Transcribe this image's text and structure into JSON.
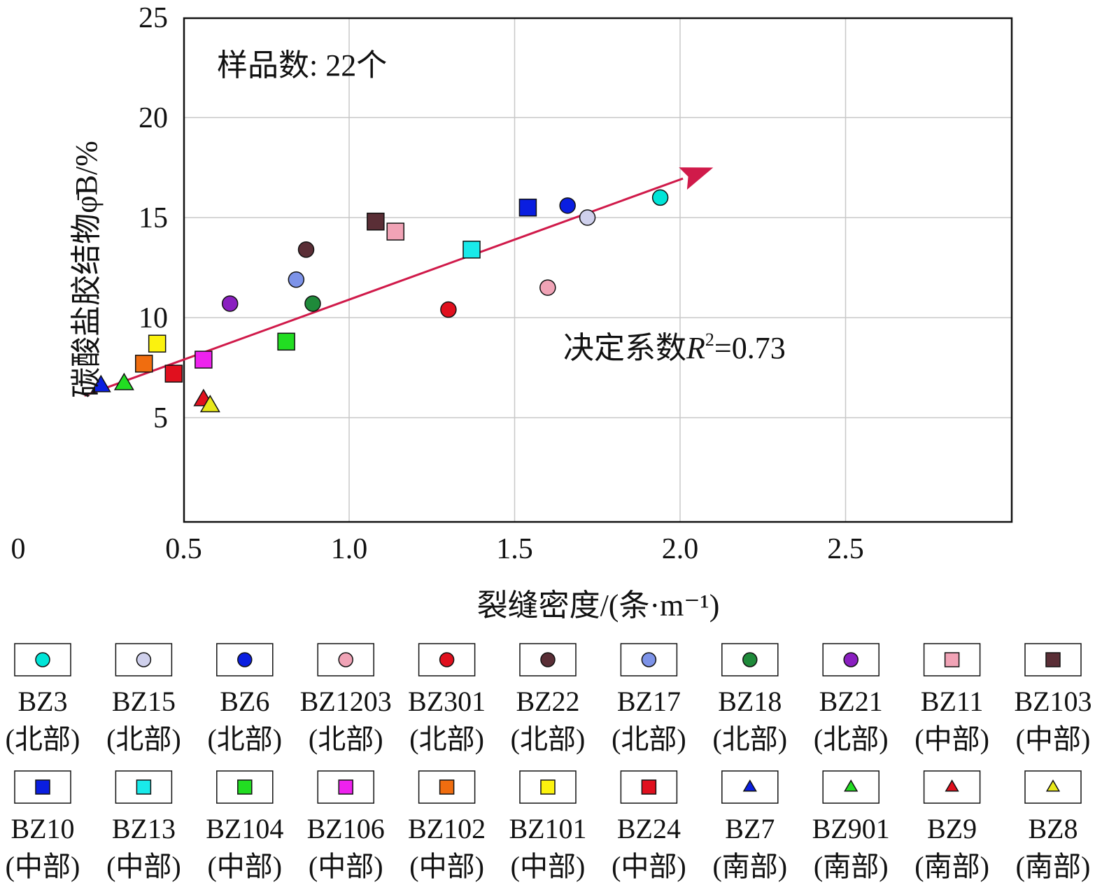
{
  "chart_data": {
    "type": "scatter",
    "annotation_samples": "样品数: 22个",
    "annotation_r2_prefix": "决定系数",
    "annotation_r2_var": "R",
    "annotation_r2_exp": "2",
    "annotation_r2_value": "=0.73",
    "xlabel": "裂缝密度/(条·m⁻¹)",
    "ylabel": "碳酸盐胶结物φ̄B/%",
    "xlim": [
      0,
      2.5
    ],
    "ylim": [
      0,
      25
    ],
    "x_ticks": [
      "0",
      "0.5",
      "1.0",
      "1.5",
      "2.0",
      "2.5"
    ],
    "y_ticks": [
      "5",
      "10",
      "15",
      "20",
      "25"
    ],
    "grid": true,
    "trend_line": {
      "x": [
        0.2,
        2.1
      ],
      "y": [
        6.1,
        17.5
      ]
    },
    "series": [
      {
        "name": "BZ3",
        "region": "(北部)",
        "marker": "circle",
        "color": "#00e5d8",
        "x": 1.94,
        "y": 16.0
      },
      {
        "name": "BZ15",
        "region": "(北部)",
        "marker": "circle",
        "color": "#cfd0ec",
        "x": 1.72,
        "y": 15.0
      },
      {
        "name": "BZ6",
        "region": "(北部)",
        "marker": "circle",
        "color": "#0a1ee0",
        "x": 1.66,
        "y": 15.6
      },
      {
        "name": "BZ1203",
        "region": "(北部)",
        "marker": "circle",
        "color": "#f0a3b6",
        "x": 1.6,
        "y": 11.5
      },
      {
        "name": "BZ301",
        "region": "(北部)",
        "marker": "circle",
        "color": "#e0101e",
        "x": 1.3,
        "y": 10.4
      },
      {
        "name": "BZ22",
        "region": "(北部)",
        "marker": "circle",
        "color": "#5a2e36",
        "x": 0.87,
        "y": 13.4
      },
      {
        "name": "BZ17",
        "region": "(北部)",
        "marker": "circle",
        "color": "#7d93e8",
        "x": 0.84,
        "y": 11.9
      },
      {
        "name": "BZ18",
        "region": "(北部)",
        "marker": "circle",
        "color": "#1f8a3a",
        "x": 0.89,
        "y": 10.7
      },
      {
        "name": "BZ21",
        "region": "(北部)",
        "marker": "circle",
        "color": "#8a1fc0",
        "x": 0.64,
        "y": 10.7
      },
      {
        "name": "BZ11",
        "region": "(中部)",
        "marker": "square",
        "color": "#f1a3b6",
        "x": 1.14,
        "y": 14.3
      },
      {
        "name": "BZ103",
        "region": "(中部)",
        "marker": "square",
        "color": "#5a2e36",
        "x": 1.08,
        "y": 14.8
      },
      {
        "name": "BZ10",
        "region": "(中部)",
        "marker": "square",
        "color": "#0a1ee0",
        "x": 1.54,
        "y": 15.5
      },
      {
        "name": "BZ13",
        "region": "(中部)",
        "marker": "square",
        "color": "#19eaea",
        "x": 1.37,
        "y": 13.4
      },
      {
        "name": "BZ104",
        "region": "(中部)",
        "marker": "square",
        "color": "#22dd22",
        "x": 0.81,
        "y": 8.8
      },
      {
        "name": "BZ106",
        "region": "(中部)",
        "marker": "square",
        "color": "#ee22ee",
        "x": 0.56,
        "y": 7.9
      },
      {
        "name": "BZ102",
        "region": "(中部)",
        "marker": "square",
        "color": "#f06d0f",
        "x": 0.38,
        "y": 7.7
      },
      {
        "name": "BZ101",
        "region": "(中部)",
        "marker": "square",
        "color": "#fbf20e",
        "x": 0.42,
        "y": 8.7
      },
      {
        "name": "BZ24",
        "region": "(中部)",
        "marker": "square",
        "color": "#e0101e",
        "x": 0.47,
        "y": 7.2
      },
      {
        "name": "BZ7",
        "region": "(南部)",
        "marker": "triangle",
        "color": "#0a1ee0",
        "x": 0.25,
        "y": 6.6
      },
      {
        "name": "BZ901",
        "region": "(南部)",
        "marker": "triangle",
        "color": "#22dd22",
        "x": 0.32,
        "y": 6.7
      },
      {
        "name": "BZ9",
        "region": "(南部)",
        "marker": "triangle",
        "color": "#e0101e",
        "x": 0.56,
        "y": 5.9
      },
      {
        "name": "BZ8",
        "region": "(南部)",
        "marker": "triangle",
        "color": "#e8e81a",
        "x": 0.58,
        "y": 5.6
      }
    ]
  },
  "colors": {
    "trend_line": "#d01a4a",
    "grid": "#c8c8c8",
    "axis": "#111111"
  }
}
